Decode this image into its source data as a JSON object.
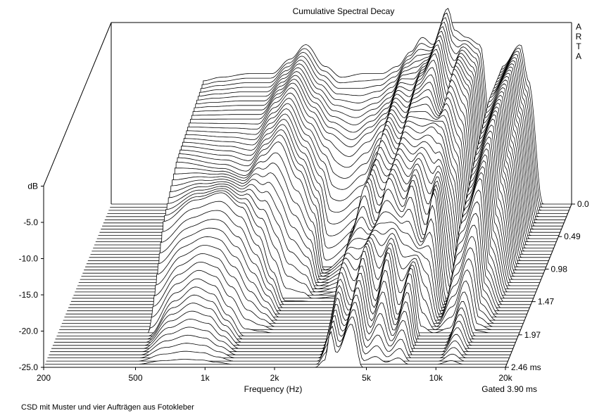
{
  "chart_data": {
    "type": "waterfall",
    "title": "Cumulative Spectral Decay",
    "brand_letters": [
      "A",
      "R",
      "T",
      "A"
    ],
    "xlabel": "Frequency (Hz)",
    "ylabel": "dB",
    "x_scale": "log",
    "x_ticks": [
      {
        "value": 200,
        "label": "200"
      },
      {
        "value": 500,
        "label": "500"
      },
      {
        "value": 1000,
        "label": "1k"
      },
      {
        "value": 2000,
        "label": "2k"
      },
      {
        "value": 5000,
        "label": "5k"
      },
      {
        "value": 10000,
        "label": "10k"
      },
      {
        "value": 20000,
        "label": "20k"
      }
    ],
    "y_ticks": [
      {
        "value": 0,
        "label": "dB"
      },
      {
        "value": -5,
        "label": "-5.0"
      },
      {
        "value": -10,
        "label": "-10.0"
      },
      {
        "value": -15,
        "label": "-15.0"
      },
      {
        "value": -20,
        "label": "-20.0"
      },
      {
        "value": -25,
        "label": "-25.0"
      }
    ],
    "ylim": [
      -25,
      0
    ],
    "time_ticks": [
      {
        "value": 0,
        "label": "0.0"
      },
      {
        "value": 0.49,
        "label": "0.49"
      },
      {
        "value": 0.98,
        "label": "0.98"
      },
      {
        "value": 1.47,
        "label": "1.47"
      },
      {
        "value": 1.97,
        "label": "1.97"
      },
      {
        "value": 2.46,
        "label": "2.46 ms"
      }
    ],
    "time_range": [
      0,
      2.46
    ],
    "gate_label": "Gated 3.90 ms",
    "series": [
      {
        "time": 0.0,
        "points": [
          [
            500,
            -8
          ],
          [
            600,
            -7.5
          ],
          [
            800,
            -7
          ],
          [
            1000,
            -7
          ],
          [
            1200,
            -5
          ],
          [
            1400,
            -3
          ],
          [
            1700,
            -6
          ],
          [
            2000,
            -7.5
          ],
          [
            2500,
            -7
          ],
          [
            3000,
            -7
          ],
          [
            3500,
            -6
          ],
          [
            4000,
            -4
          ],
          [
            4500,
            -2
          ],
          [
            5000,
            -3
          ],
          [
            5800,
            2
          ],
          [
            6200,
            -1
          ],
          [
            7000,
            -2
          ],
          [
            8000,
            -3
          ],
          [
            9000,
            -16
          ],
          [
            10000,
            -6
          ],
          [
            12000,
            -3
          ],
          [
            13000,
            -8
          ],
          [
            15000,
            -25
          ]
        ]
      },
      {
        "time": 0.49,
        "points": [
          [
            500,
            -9
          ],
          [
            800,
            -9
          ],
          [
            1000,
            -9
          ],
          [
            1200,
            -6
          ],
          [
            1400,
            -4
          ],
          [
            1700,
            -8
          ],
          [
            2000,
            -11
          ],
          [
            2500,
            -13
          ],
          [
            3000,
            -11
          ],
          [
            3500,
            -9
          ],
          [
            4000,
            -5
          ],
          [
            4500,
            -6
          ],
          [
            5000,
            -3
          ],
          [
            5800,
            0
          ],
          [
            6500,
            -7
          ],
          [
            7000,
            -2
          ],
          [
            8000,
            -5
          ],
          [
            9000,
            -20
          ],
          [
            10000,
            -6
          ],
          [
            12000,
            -3
          ],
          [
            13000,
            -10
          ],
          [
            15000,
            -25
          ]
        ]
      },
      {
        "time": 0.98,
        "points": [
          [
            500,
            -10
          ],
          [
            800,
            -11
          ],
          [
            1000,
            -12
          ],
          [
            1200,
            -9
          ],
          [
            1400,
            -7
          ],
          [
            1700,
            -12
          ],
          [
            2000,
            -17
          ],
          [
            2200,
            -25
          ],
          [
            3000,
            -22
          ],
          [
            3500,
            -14
          ],
          [
            4000,
            -6
          ],
          [
            4500,
            -9
          ],
          [
            5000,
            -5
          ],
          [
            5800,
            -6
          ],
          [
            6500,
            -5
          ],
          [
            7000,
            -6
          ],
          [
            8000,
            -12
          ],
          [
            9000,
            -25
          ],
          [
            10000,
            -9
          ],
          [
            12000,
            -4
          ],
          [
            13000,
            -13
          ],
          [
            15000,
            -25
          ]
        ]
      },
      {
        "time": 1.47,
        "points": [
          [
            500,
            -14
          ],
          [
            700,
            -11
          ],
          [
            900,
            -10
          ],
          [
            1100,
            -12
          ],
          [
            1300,
            -16
          ],
          [
            1500,
            -21
          ],
          [
            1700,
            -25
          ],
          [
            3000,
            -25
          ],
          [
            3300,
            -15
          ],
          [
            3800,
            -9
          ],
          [
            4200,
            -14
          ],
          [
            4800,
            -8
          ],
          [
            5500,
            -12
          ],
          [
            6000,
            -9
          ],
          [
            6800,
            -16
          ],
          [
            7500,
            -10
          ],
          [
            8500,
            -25
          ],
          [
            10000,
            -14
          ],
          [
            12000,
            -8
          ],
          [
            13000,
            -20
          ],
          [
            15000,
            -25
          ]
        ]
      },
      {
        "time": 1.97,
        "points": [
          [
            500,
            -25
          ],
          [
            650,
            -20
          ],
          [
            800,
            -18
          ],
          [
            950,
            -19
          ],
          [
            1100,
            -22
          ],
          [
            1300,
            -25
          ],
          [
            3000,
            -25
          ],
          [
            3400,
            -16
          ],
          [
            3800,
            -20
          ],
          [
            4300,
            -13
          ],
          [
            4800,
            -20
          ],
          [
            5400,
            -14
          ],
          [
            6000,
            -22
          ],
          [
            6800,
            -16
          ],
          [
            7500,
            -25
          ],
          [
            10000,
            -25
          ],
          [
            11500,
            -20
          ],
          [
            13000,
            -25
          ]
        ]
      },
      {
        "time": 2.46,
        "points": [
          [
            3000,
            -25
          ],
          [
            3300,
            -24
          ],
          [
            3500,
            -20
          ],
          [
            3700,
            -23
          ],
          [
            4300,
            -19
          ],
          [
            4800,
            -25
          ],
          [
            20000,
            -25
          ]
        ]
      }
    ]
  },
  "caption": "CSD mit Muster und vier Aufträgen aus Fotokleber"
}
